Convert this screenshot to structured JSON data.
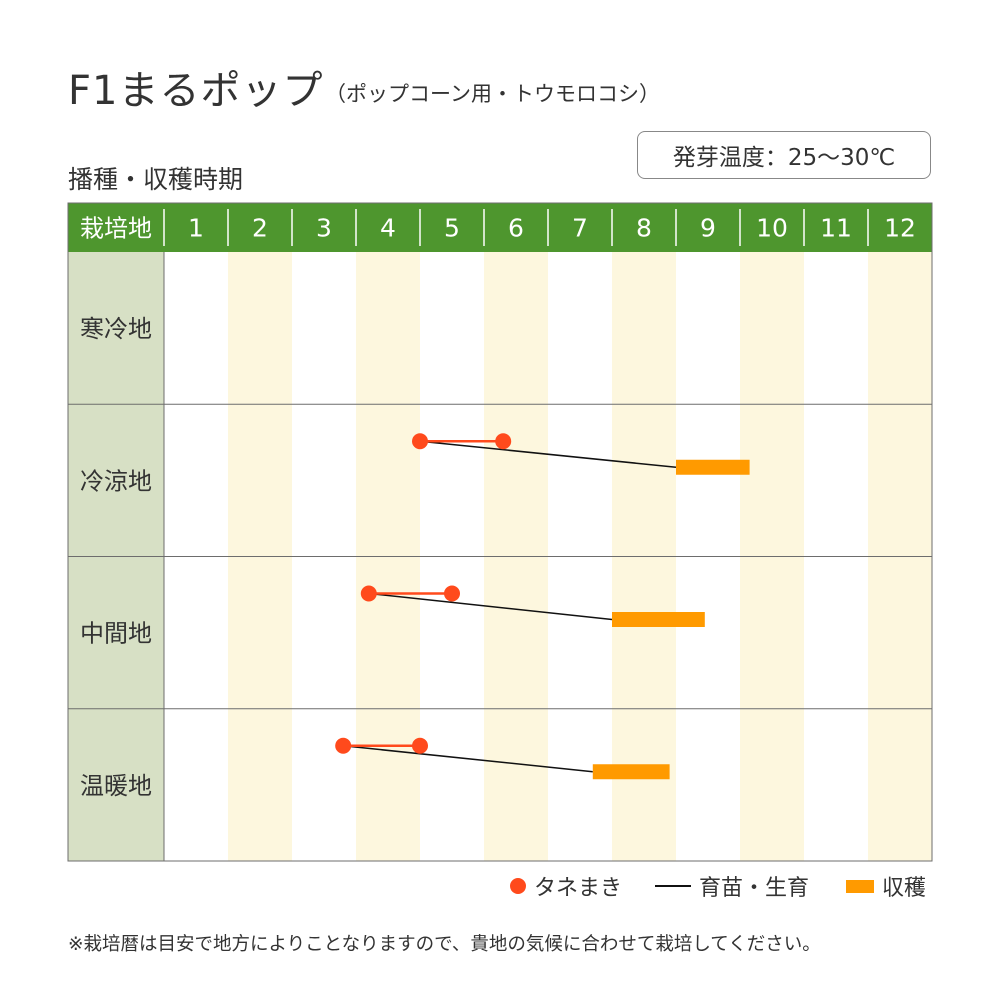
{
  "title": "F1まるポップ",
  "subtitle": "（ポップコーン用・トウモロコシ）",
  "germination": "発芽温度：25～30℃",
  "footnote": "※栽培暦は目安で地方によりことなりますので、貴地の気候に合わせて栽培してください。",
  "colors": {
    "header_green": "#4e962e",
    "region_bg": "#d7e0c5",
    "stripe": "#fdf7de",
    "sowing": "#ff4a1c",
    "growth": "#111111",
    "harvest": "#ff9a00",
    "grid": "#6d6d6d"
  },
  "chart_data": {
    "type": "table",
    "title": "播種・収穫時期",
    "corner_label": "栽培地",
    "months": [
      "1",
      "2",
      "3",
      "4",
      "5",
      "6",
      "7",
      "8",
      "9",
      "10",
      "11",
      "12"
    ],
    "regions": [
      {
        "name": "寒冷地",
        "sowing": null,
        "harvest": null
      },
      {
        "name": "冷涼地",
        "sowing": [
          5.0,
          6.3
        ],
        "harvest": [
          9.0,
          10.15
        ]
      },
      {
        "name": "中間地",
        "sowing": [
          4.2,
          5.5
        ],
        "harvest": [
          8.0,
          9.45
        ]
      },
      {
        "name": "温暖地",
        "sowing": [
          3.8,
          5.0
        ],
        "harvest": [
          7.7,
          8.9
        ]
      }
    ],
    "legend": {
      "sowing": "タネまき",
      "growth": "育苗・生育",
      "harvest": "収穫"
    }
  }
}
